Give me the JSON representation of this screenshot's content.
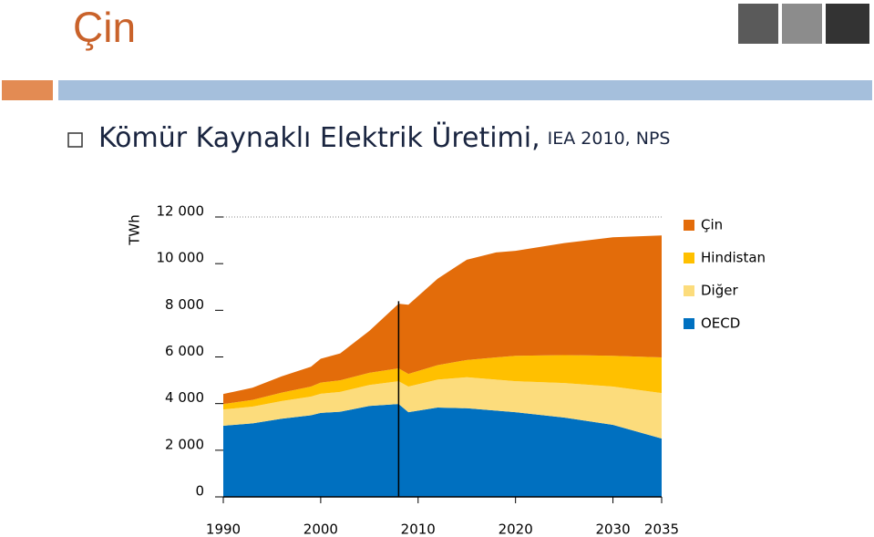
{
  "slide": {
    "title": "Çin",
    "heading": "Kömür Kaynaklı Elektrik Üretimi,",
    "source": "IEA 2010, NPS"
  },
  "chart_data": {
    "type": "stacked-area",
    "y_label": "TWh",
    "x": [
      1990,
      1993,
      1996,
      1999,
      2000,
      2002,
      2005,
      2008,
      2009,
      2012,
      2015,
      2018,
      2020,
      2025,
      2030,
      2035
    ],
    "series": [
      {
        "name": "Çin",
        "color": "#e36c0a",
        "values": [
          430,
          520,
          700,
          850,
          1020,
          1150,
          1800,
          2770,
          2970,
          3700,
          4300,
          4500,
          4500,
          4800,
          5080,
          5230
        ]
      },
      {
        "name": "Hindistan",
        "color": "#ffc000",
        "values": [
          230,
          290,
          360,
          430,
          480,
          500,
          520,
          550,
          540,
          620,
          740,
          950,
          1090,
          1200,
          1320,
          1530
        ]
      },
      {
        "name": "Diğer",
        "color": "#fcdc7c",
        "values": [
          700,
          720,
          760,
          800,
          820,
          850,
          900,
          980,
          1100,
          1200,
          1330,
          1330,
          1330,
          1480,
          1640,
          1950
        ]
      },
      {
        "name": "OECD",
        "color": "#0070c0",
        "values": [
          3050,
          3150,
          3350,
          3500,
          3600,
          3650,
          3900,
          3980,
          3630,
          3830,
          3800,
          3700,
          3630,
          3400,
          3090,
          2500
        ]
      }
    ],
    "vline": 2008,
    "xlim": [
      1990,
      2035
    ],
    "xticks": [
      1990,
      2000,
      2010,
      2020,
      2030,
      2035
    ],
    "ylim": [
      0,
      12000
    ],
    "yticks": [
      0,
      {
        "value": 2000,
        "label": "2 000"
      },
      {
        "value": 4000,
        "label": "4 000"
      },
      {
        "value": 6000,
        "label": "6 000"
      },
      {
        "value": 8000,
        "label": "8 000"
      },
      {
        "value": 10000,
        "label": "10 000"
      },
      {
        "value": 12000,
        "label": "12 000"
      }
    ],
    "legend": "right"
  }
}
